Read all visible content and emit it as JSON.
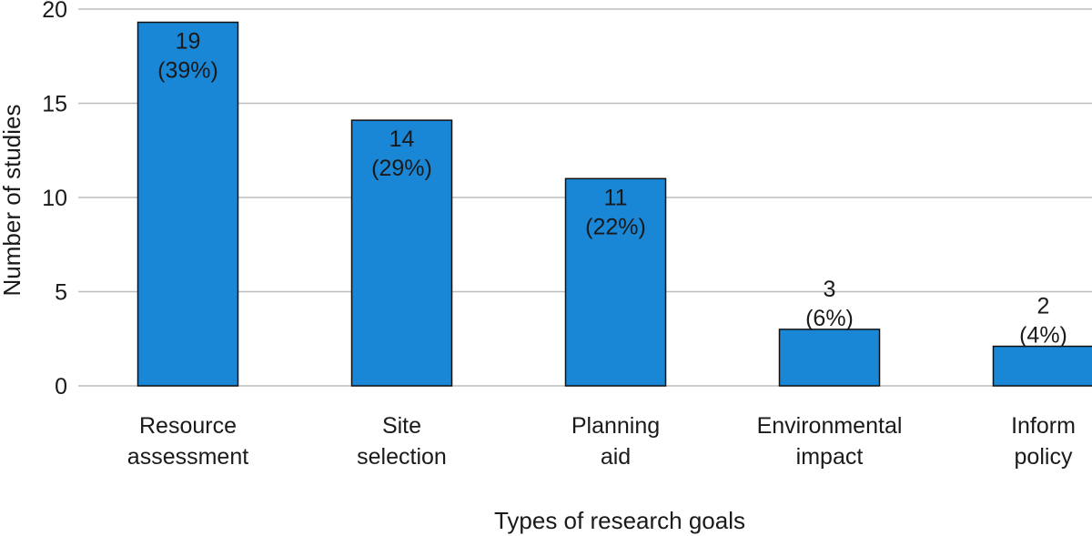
{
  "chart_data": {
    "type": "bar",
    "title": "",
    "xlabel": "Types of research goals",
    "ylabel": "Number of studies",
    "ylim": [
      0,
      20
    ],
    "yticks": [
      "0",
      "5",
      "10",
      "15",
      "20"
    ],
    "grid": true,
    "categories": [
      [
        "Resource",
        "assessment"
      ],
      [
        "Site",
        "selection"
      ],
      [
        "Planning",
        "aid"
      ],
      [
        "Environmental",
        "impact"
      ],
      [
        "Inform",
        "policy"
      ]
    ],
    "values": [
      19.3,
      14.1,
      11,
      3,
      2.1
    ],
    "data_labels": [
      [
        "19",
        "(39%)"
      ],
      [
        "14",
        "(29%)"
      ],
      [
        "11",
        "(22%)"
      ],
      [
        "3",
        "(6%)"
      ],
      [
        "2",
        "(4%)"
      ]
    ],
    "label_position": [
      "inside",
      "inside",
      "inside",
      "above",
      "above"
    ],
    "bar_color": "#1a86d6"
  }
}
